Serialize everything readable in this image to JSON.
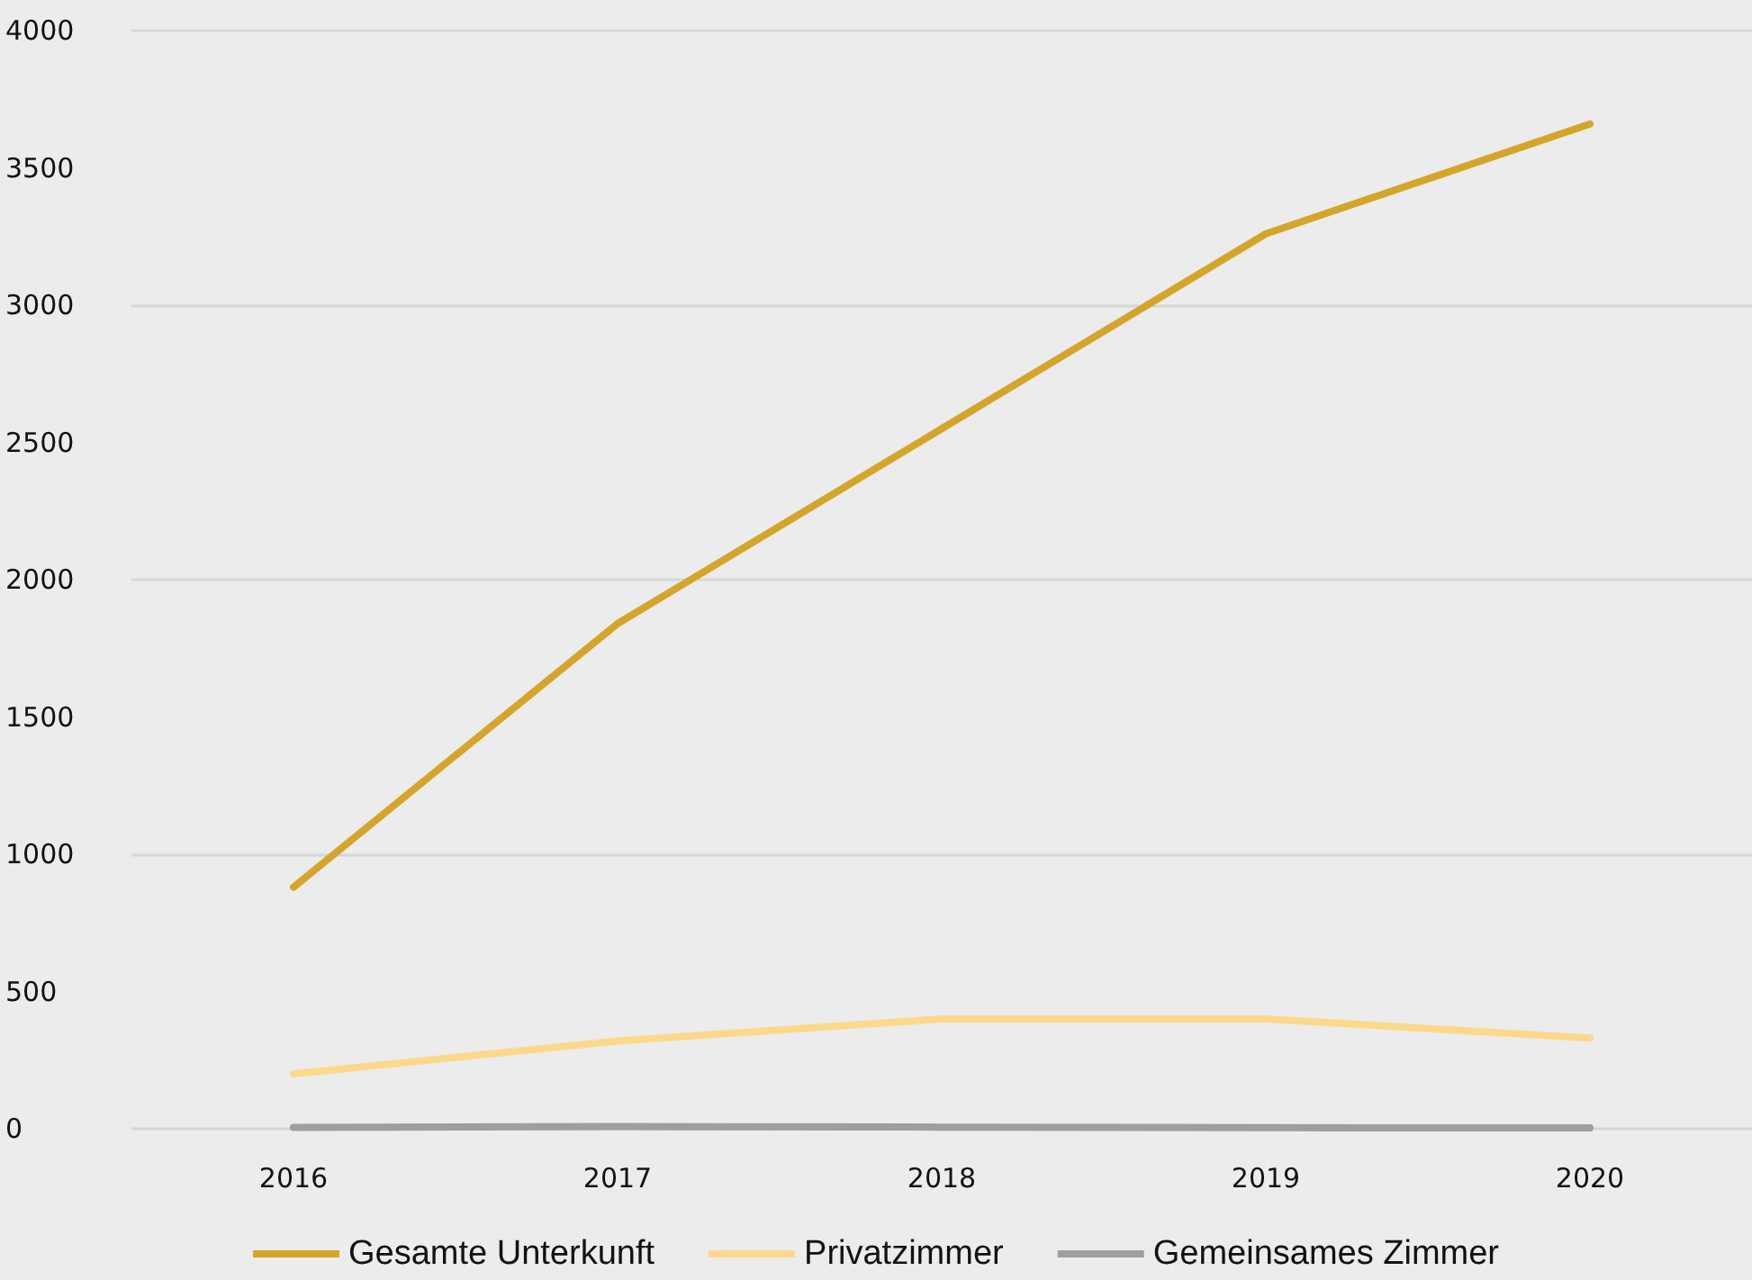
{
  "chart_data": {
    "type": "line",
    "categories": [
      "2016",
      "2017",
      "2018",
      "2019",
      "2020"
    ],
    "series": [
      {
        "name": "Gesamte Unterkunft",
        "color": "#d4a52a",
        "values": [
          880,
          1840,
          2550,
          3260,
          3660
        ]
      },
      {
        "name": "Privatzimmer",
        "color": "#fcd88a",
        "values": [
          200,
          320,
          400,
          400,
          330
        ]
      },
      {
        "name": "Gemeinsames Zimmer",
        "color": "#9e9e9e",
        "values": [
          5,
          8,
          6,
          4,
          3
        ]
      }
    ],
    "ylim": [
      0,
      4000
    ],
    "yticks": [
      0,
      500,
      1000,
      1500,
      2000,
      2500,
      3000,
      3500,
      4000
    ],
    "grid": "y",
    "legend": "bottom",
    "marker": "none",
    "line_style": "solid"
  }
}
